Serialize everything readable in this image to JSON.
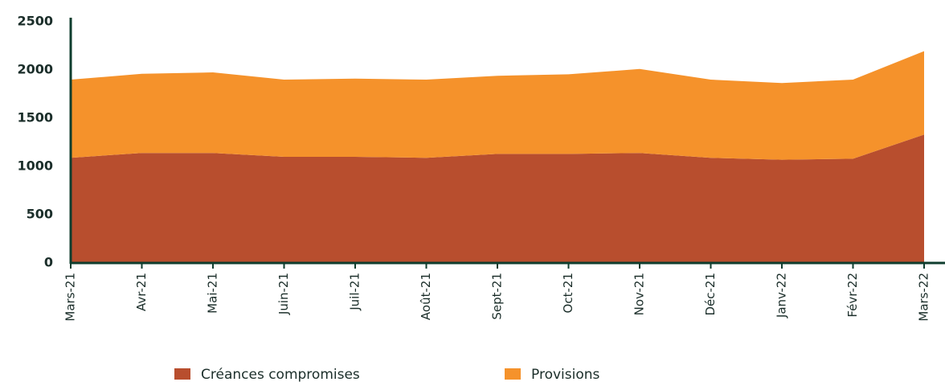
{
  "chart_data": {
    "type": "stacked-area",
    "categories": [
      "Mars-21",
      "Avr-21",
      "Mai-21",
      "Juin-21",
      "Juil-21",
      "Août-21",
      "Sept-21",
      "Oct-21",
      "Nov-21",
      "Déc-21",
      "Janv-22",
      "Févr-22",
      "Mars-22"
    ],
    "series": [
      {
        "name": "Créances compromises",
        "color": "#b84e2e",
        "values": [
          1090,
          1140,
          1140,
          1100,
          1100,
          1090,
          1130,
          1130,
          1140,
          1090,
          1070,
          1080,
          1330
        ]
      },
      {
        "name": "Provisions",
        "color": "#f5922b",
        "values": [
          810,
          820,
          835,
          800,
          810,
          810,
          810,
          825,
          870,
          810,
          795,
          820,
          865
        ]
      }
    ],
    "ylim": [
      0,
      2500
    ],
    "yticks": [
      0,
      500,
      1000,
      1500,
      2000,
      2500
    ]
  }
}
